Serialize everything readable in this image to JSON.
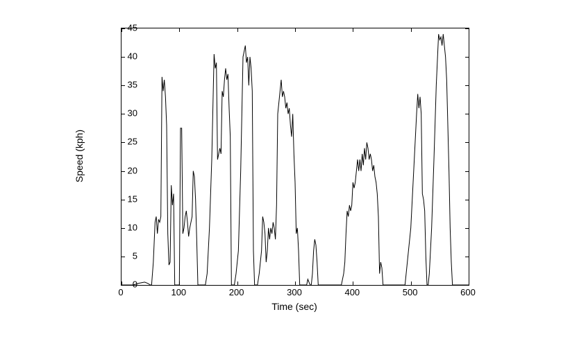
{
  "chart": {
    "type": "line",
    "xlabel": "Time (sec)",
    "ylabel": "Speed (kph)",
    "xlim": [
      0,
      600
    ],
    "ylim": [
      0,
      45
    ],
    "xticks": [
      0,
      100,
      200,
      300,
      400,
      500,
      600
    ],
    "yticks": [
      0,
      5,
      10,
      15,
      20,
      25,
      30,
      35,
      40,
      45
    ],
    "line_color": "#000000",
    "line_width": 1,
    "background_color": "#ffffff",
    "border_color": "#000000",
    "tick_fontsize": 13,
    "label_fontsize": 14,
    "data": [
      [
        0,
        0
      ],
      [
        20,
        0
      ],
      [
        30,
        0.3
      ],
      [
        40,
        0.5
      ],
      [
        45,
        0.3
      ],
      [
        50,
        0
      ],
      [
        52,
        0
      ],
      [
        55,
        4
      ],
      [
        58,
        11
      ],
      [
        60,
        12
      ],
      [
        62,
        9
      ],
      [
        64,
        11.5
      ],
      [
        66,
        11
      ],
      [
        68,
        12
      ],
      [
        70,
        36.5
      ],
      [
        72,
        34
      ],
      [
        74,
        36
      ],
      [
        76,
        33
      ],
      [
        78,
        28
      ],
      [
        80,
        9
      ],
      [
        82,
        3.5
      ],
      [
        84,
        4
      ],
      [
        86,
        17.5
      ],
      [
        88,
        14
      ],
      [
        90,
        16
      ],
      [
        92,
        0
      ],
      [
        95,
        0
      ],
      [
        100,
        0
      ],
      [
        102,
        27.5
      ],
      [
        104,
        27.5
      ],
      [
        106,
        9
      ],
      [
        108,
        10
      ],
      [
        110,
        12
      ],
      [
        112,
        13
      ],
      [
        114,
        11
      ],
      [
        116,
        8.5
      ],
      [
        118,
        10
      ],
      [
        120,
        11
      ],
      [
        122,
        12
      ],
      [
        124,
        20
      ],
      [
        126,
        19
      ],
      [
        128,
        15
      ],
      [
        130,
        8
      ],
      [
        132,
        0
      ],
      [
        135,
        0
      ],
      [
        145,
        0
      ],
      [
        148,
        2
      ],
      [
        152,
        10
      ],
      [
        156,
        22
      ],
      [
        160,
        40.5
      ],
      [
        162,
        38
      ],
      [
        164,
        39
      ],
      [
        166,
        22
      ],
      [
        168,
        23
      ],
      [
        170,
        24
      ],
      [
        172,
        23
      ],
      [
        174,
        34
      ],
      [
        176,
        33
      ],
      [
        178,
        36
      ],
      [
        180,
        38
      ],
      [
        182,
        36
      ],
      [
        184,
        37
      ],
      [
        186,
        31
      ],
      [
        188,
        26
      ],
      [
        190,
        0
      ],
      [
        195,
        0
      ],
      [
        198,
        2
      ],
      [
        202,
        6
      ],
      [
        206,
        20
      ],
      [
        210,
        40
      ],
      [
        214,
        42
      ],
      [
        216,
        39
      ],
      [
        218,
        40
      ],
      [
        220,
        35
      ],
      [
        222,
        40
      ],
      [
        224,
        38
      ],
      [
        226,
        34
      ],
      [
        228,
        6
      ],
      [
        230,
        0
      ],
      [
        235,
        0
      ],
      [
        238,
        2
      ],
      [
        240,
        4
      ],
      [
        242,
        6
      ],
      [
        244,
        12
      ],
      [
        246,
        11
      ],
      [
        248,
        9
      ],
      [
        250,
        4
      ],
      [
        252,
        6
      ],
      [
        254,
        10
      ],
      [
        256,
        8
      ],
      [
        258,
        10
      ],
      [
        260,
        9
      ],
      [
        262,
        11
      ],
      [
        264,
        10
      ],
      [
        266,
        8
      ],
      [
        268,
        14
      ],
      [
        270,
        30
      ],
      [
        272,
        32
      ],
      [
        274,
        34
      ],
      [
        276,
        36
      ],
      [
        278,
        33
      ],
      [
        280,
        34
      ],
      [
        282,
        33
      ],
      [
        284,
        31
      ],
      [
        286,
        32
      ],
      [
        288,
        30
      ],
      [
        290,
        31
      ],
      [
        292,
        28
      ],
      [
        294,
        26
      ],
      [
        296,
        30
      ],
      [
        298,
        23
      ],
      [
        300,
        18
      ],
      [
        302,
        9
      ],
      [
        304,
        10
      ],
      [
        306,
        6
      ],
      [
        308,
        0
      ],
      [
        312,
        0
      ],
      [
        320,
        0
      ],
      [
        322,
        1
      ],
      [
        324,
        0.5
      ],
      [
        326,
        0
      ],
      [
        328,
        0
      ],
      [
        330,
        2
      ],
      [
        332,
        6
      ],
      [
        334,
        8
      ],
      [
        336,
        7
      ],
      [
        338,
        4
      ],
      [
        340,
        0
      ],
      [
        345,
        0
      ],
      [
        380,
        0
      ],
      [
        382,
        1
      ],
      [
        384,
        2
      ],
      [
        386,
        4
      ],
      [
        388,
        9
      ],
      [
        390,
        13
      ],
      [
        392,
        12
      ],
      [
        394,
        14
      ],
      [
        396,
        13
      ],
      [
        398,
        14
      ],
      [
        400,
        18
      ],
      [
        402,
        17
      ],
      [
        404,
        18
      ],
      [
        406,
        20
      ],
      [
        408,
        22
      ],
      [
        410,
        20
      ],
      [
        412,
        22
      ],
      [
        414,
        20
      ],
      [
        416,
        23
      ],
      [
        418,
        21
      ],
      [
        420,
        24
      ],
      [
        422,
        22
      ],
      [
        424,
        25
      ],
      [
        426,
        24
      ],
      [
        428,
        22
      ],
      [
        430,
        23
      ],
      [
        432,
        22
      ],
      [
        434,
        20
      ],
      [
        436,
        21
      ],
      [
        438,
        19
      ],
      [
        440,
        18
      ],
      [
        442,
        16
      ],
      [
        444,
        12
      ],
      [
        446,
        2
      ],
      [
        448,
        4
      ],
      [
        450,
        3
      ],
      [
        452,
        0
      ],
      [
        460,
        0
      ],
      [
        490,
        0
      ],
      [
        492,
        2
      ],
      [
        496,
        6
      ],
      [
        500,
        10
      ],
      [
        504,
        18
      ],
      [
        508,
        26
      ],
      [
        510,
        30
      ],
      [
        512,
        33.5
      ],
      [
        514,
        31
      ],
      [
        516,
        33
      ],
      [
        518,
        30
      ],
      [
        520,
        16
      ],
      [
        522,
        15
      ],
      [
        524,
        13
      ],
      [
        526,
        5
      ],
      [
        528,
        0
      ],
      [
        530,
        0
      ],
      [
        532,
        2
      ],
      [
        536,
        10
      ],
      [
        540,
        22
      ],
      [
        544,
        35
      ],
      [
        548,
        44
      ],
      [
        550,
        43
      ],
      [
        552,
        43.5
      ],
      [
        554,
        42
      ],
      [
        556,
        44
      ],
      [
        558,
        42
      ],
      [
        560,
        40
      ],
      [
        562,
        36
      ],
      [
        564,
        28
      ],
      [
        566,
        20
      ],
      [
        568,
        10
      ],
      [
        570,
        4
      ],
      [
        572,
        0
      ],
      [
        580,
        0
      ],
      [
        600,
        0
      ]
    ]
  }
}
